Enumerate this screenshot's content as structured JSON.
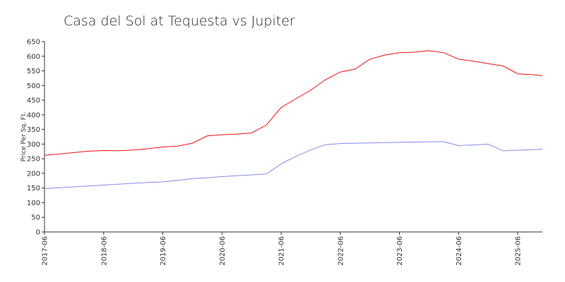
{
  "chart_data": {
    "type": "line",
    "title": "Casa del Sol at Tequesta vs Jupiter",
    "y_label": "Price Per Sq. Ft.",
    "x": [
      "2017-06",
      "2017-09",
      "2017-12",
      "2018-03",
      "2018-06",
      "2018-09",
      "2018-12",
      "2019-03",
      "2019-06",
      "2019-09",
      "2019-12",
      "2020-03",
      "2020-06",
      "2020-09",
      "2020-12",
      "2021-03",
      "2021-06",
      "2021-09",
      "2021-12",
      "2022-03",
      "2022-06",
      "2022-09",
      "2022-12",
      "2023-03",
      "2023-06",
      "2023-09",
      "2023-12",
      "2024-03",
      "2024-06",
      "2024-09",
      "2024-12",
      "2025-03",
      "2025-06",
      "2025-09",
      "2025-11"
    ],
    "series": [
      {
        "color": "#ee1111",
        "values": [
          262,
          266,
          271,
          276,
          278,
          277,
          280,
          284,
          290,
          293,
          303,
          328,
          332,
          334,
          338,
          365,
          425,
          455,
          484,
          520,
          546,
          556,
          590,
          604,
          612,
          614,
          619,
          612,
          590,
          583,
          575,
          567,
          540,
          537,
          534
        ]
      },
      {
        "color": "#8888ee",
        "values": [
          148,
          151,
          154,
          157,
          160,
          163,
          166,
          169,
          171,
          176,
          182,
          185,
          189,
          192,
          195,
          198,
          232,
          258,
          280,
          298,
          302,
          303,
          304,
          305,
          306,
          307,
          308,
          308,
          295,
          297,
          300,
          277,
          279,
          281,
          283
        ]
      }
    ],
    "xlim": [
      "2017-06",
      "2025-11"
    ],
    "xticks": [
      "2017-06",
      "2018-06",
      "2019-06",
      "2020-06",
      "2021-06",
      "2022-06",
      "2023-06",
      "2024-06",
      "2025-06"
    ],
    "ylim": [
      0,
      650
    ],
    "yticks": [
      0,
      50,
      100,
      150,
      200,
      250,
      300,
      350,
      400,
      450,
      500,
      550,
      600,
      650
    ]
  }
}
